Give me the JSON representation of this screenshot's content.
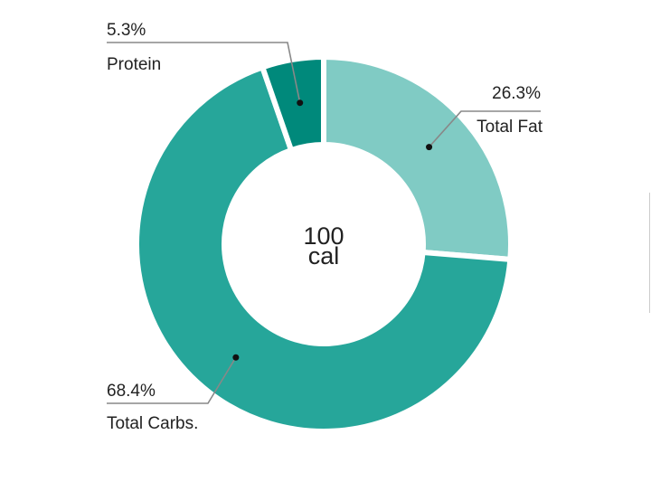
{
  "chart_data": {
    "type": "pie",
    "variant": "donut",
    "center_text": {
      "value": "100",
      "unit": "cal"
    },
    "slices": [
      {
        "name": "Total Fat",
        "value": 26.3,
        "label": "26.3%",
        "color": "#80cbc4"
      },
      {
        "name": "Total Carbs.",
        "value": 68.4,
        "label": "68.4%",
        "color": "#26a69a"
      },
      {
        "name": "Protein",
        "value": 5.3,
        "label": "5.3%",
        "color": "#00897b"
      }
    ],
    "leader_color": "#888888",
    "dot_color": "#111111",
    "slice_gap_color": "#ffffff"
  }
}
